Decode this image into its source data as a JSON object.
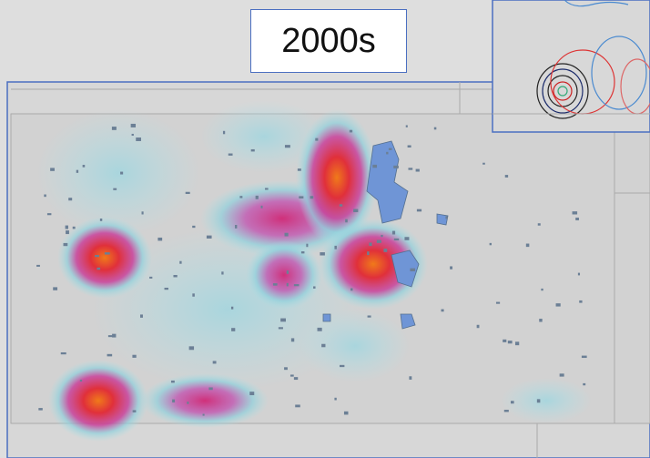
{
  "title": "2000s"
}
